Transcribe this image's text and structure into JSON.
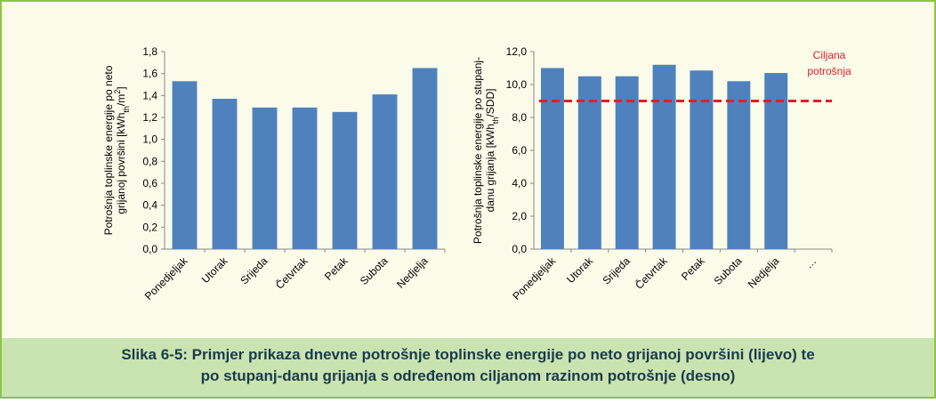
{
  "chart_data": [
    {
      "type": "bar",
      "color": "#4f81bd",
      "ylabel": {
        "line1": "Potrošnja toplinske energije po neto",
        "line2": "grijanoj površini  [kWh",
        "sub": "th",
        "mid": "/m",
        "sup": "2",
        "end": "]"
      },
      "categories": [
        "Ponedjeljak",
        "Utorak",
        "Srijeda",
        "Četvrtak",
        "Petak",
        "Subota",
        "Nedjelja"
      ],
      "values": [
        1.53,
        1.37,
        1.29,
        1.29,
        1.25,
        1.41,
        1.65
      ],
      "ylim": [
        0,
        1.8
      ],
      "yticks": [
        {
          "value": 0,
          "label": "0,0"
        },
        {
          "value": 0.2,
          "label": "0,2"
        },
        {
          "value": 0.4,
          "label": "0,4"
        },
        {
          "value": 0.6,
          "label": "0,6"
        },
        {
          "value": 0.8,
          "label": "0,8"
        },
        {
          "value": 1.0,
          "label": "1,0"
        },
        {
          "value": 1.2,
          "label": "1,2"
        },
        {
          "value": 1.4,
          "label": "1,4"
        },
        {
          "value": 1.6,
          "label": "1,6"
        },
        {
          "value": 1.8,
          "label": "1,8"
        }
      ]
    },
    {
      "type": "bar",
      "color": "#4f81bd",
      "ylabel": {
        "line1": "Potrošnja toplinske energije po stupanj-",
        "line2": "danu grijanja  [kWh",
        "sub": "th",
        "mid": "/SDD",
        "sup": "",
        "end": "]"
      },
      "categories": [
        "Ponedjeljak",
        "Utorak",
        "Srijeda",
        "Četvrtak",
        "Petak",
        "Subota",
        "Nedjelja",
        "…"
      ],
      "values": [
        11.0,
        10.5,
        10.5,
        11.2,
        10.85,
        10.2,
        10.7,
        null
      ],
      "ylim": [
        0,
        12
      ],
      "yticks": [
        {
          "value": 0,
          "label": "0,0"
        },
        {
          "value": 2,
          "label": "2,0"
        },
        {
          "value": 4,
          "label": "4,0"
        },
        {
          "value": 6,
          "label": "6,0"
        },
        {
          "value": 8,
          "label": "8,0"
        },
        {
          "value": 10,
          "label": "10,0"
        },
        {
          "value": 12,
          "label": "12,0"
        }
      ],
      "target": {
        "value": 9.0,
        "label_lines": [
          "Ciljana",
          "potrošnja"
        ],
        "color": "#e31e24"
      }
    }
  ],
  "caption": {
    "line1": "Slika 6-5: Primjer prikaza dnevne potrošnje toplinske energije po neto grijanoj površini (lijevo) te",
    "line2": "po stupanj-danu grijanja s određenom ciljanom razinom potrošnje (desno)"
  }
}
